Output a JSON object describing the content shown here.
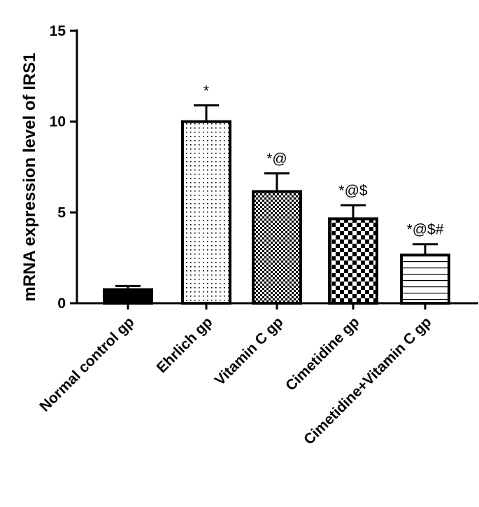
{
  "chart_data": {
    "type": "bar",
    "ylabel": "mRNA expression level of IRS1",
    "xlabel": "",
    "ylim": [
      0,
      15
    ],
    "yticks": [
      0,
      5,
      10,
      15
    ],
    "grid": false,
    "categories": [
      "Normal control gp",
      "Ehrlich gp",
      "Vitamin C gp",
      "Cimetidine gp",
      "Cimetidine+Vitamin C gp"
    ],
    "values": [
      0.75,
      10.0,
      6.15,
      4.65,
      2.65
    ],
    "errors": [
      0.2,
      0.9,
      1.0,
      0.75,
      0.6
    ],
    "annotations": [
      "",
      "*",
      "*@",
      "*@$",
      "*@$#"
    ],
    "fill_patterns": [
      "solid-black",
      "sparse-dots",
      "fine-checker",
      "large-checker",
      "horizontal-lines"
    ]
  }
}
